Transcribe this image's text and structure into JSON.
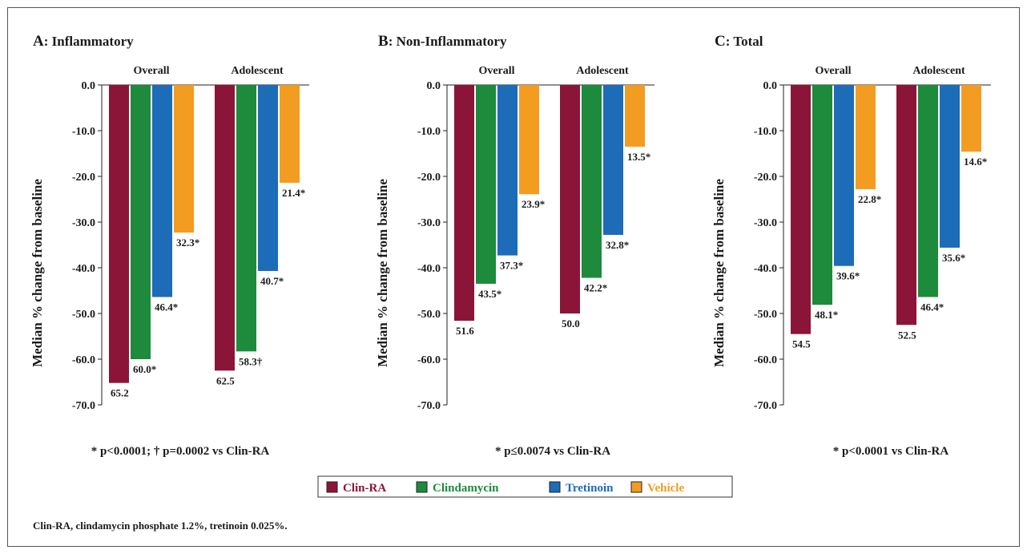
{
  "chart_data": {
    "type": "bar",
    "series": [
      {
        "name": "Clin-RA",
        "color": "#8b1538"
      },
      {
        "name": "Clindamycin",
        "color": "#1d8a3c"
      },
      {
        "name": "Tretinoin",
        "color": "#1c6cb8"
      },
      {
        "name": "Vehicle",
        "color": "#f39c22"
      }
    ],
    "ylabel": "Median % change from baseline",
    "ylim": [
      -70,
      0
    ],
    "yticks": [
      "0.0",
      "-10.0",
      "-20.0",
      "-30.0",
      "-40.0",
      "-50.0",
      "-60.0",
      "-70.0"
    ],
    "categories": [
      "Overall",
      "Adolescent"
    ],
    "panels": [
      {
        "letter": "A",
        "title": ": Inflammatory",
        "footnote": "* p<0.0001; † p=0.0002 vs Clin-RA",
        "groups": [
          {
            "name": "Overall",
            "values": [
              -65.2,
              -60.0,
              -46.4,
              -32.3
            ],
            "labels": [
              "65.2",
              "60.0*",
              "46.4*",
              "32.3*"
            ]
          },
          {
            "name": "Adolescent",
            "values": [
              -62.5,
              -58.3,
              -40.7,
              -21.4
            ],
            "labels": [
              "62.5",
              "58.3†",
              "40.7*",
              "21.4*"
            ]
          }
        ]
      },
      {
        "letter": "B",
        "title": ": Non-Inflammatory",
        "footnote": "* p≤0.0074 vs Clin-RA",
        "groups": [
          {
            "name": "Overall",
            "values": [
              -51.6,
              -43.5,
              -37.3,
              -23.9
            ],
            "labels": [
              "51.6",
              "43.5*",
              "37.3*",
              "23.9*"
            ]
          },
          {
            "name": "Adolescent",
            "values": [
              -50.0,
              -42.2,
              -32.8,
              -13.5
            ],
            "labels": [
              "50.0",
              "42.2*",
              "32.8*",
              "13.5*"
            ]
          }
        ]
      },
      {
        "letter": "C",
        "title": ": Total",
        "footnote": "* p<0.0001 vs Clin-RA",
        "groups": [
          {
            "name": "Overall",
            "values": [
              -54.5,
              -48.1,
              -39.6,
              -22.8
            ],
            "labels": [
              "54.5",
              "48.1*",
              "39.6*",
              "22.8*"
            ]
          },
          {
            "name": "Adolescent",
            "values": [
              -52.5,
              -46.4,
              -35.6,
              -14.6
            ],
            "labels": [
              "52.5",
              "46.4*",
              "35.6*",
              "14.6*"
            ]
          }
        ]
      }
    ],
    "legend_position": "bottom-center",
    "grid": false
  },
  "abbreviation_note": "Clin-RA, clindamycin phosphate 1.2%, tretinoin 0.025%."
}
